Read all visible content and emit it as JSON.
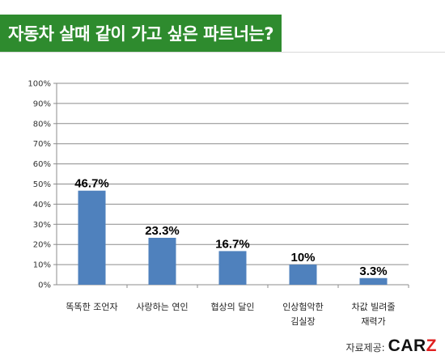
{
  "header": {
    "title": "자동차 살때 같이 가고 싶은 파트너는?"
  },
  "source": {
    "label": "자료제공:",
    "brand_main": "CAR",
    "brand_accent": "Z"
  },
  "colors": {
    "title_bg": "#2e8b2e",
    "bar": "#4f81bd",
    "brand_accent": "#e02020"
  },
  "chart_data": {
    "type": "bar",
    "categories": [
      [
        "똑똑한 조언자"
      ],
      [
        "사랑하는 연인"
      ],
      [
        "협상의 달인"
      ],
      [
        "인상험악한",
        "김실장"
      ],
      [
        "차값 빌려줄",
        "재력가"
      ]
    ],
    "values": [
      46.7,
      23.3,
      16.7,
      10,
      3.3
    ],
    "value_labels": [
      "46.7%",
      "23.3%",
      "16.7%",
      "10%",
      "3.3%"
    ],
    "ylim": [
      0,
      100
    ],
    "yticks": [
      "0%",
      "10%",
      "20%",
      "30%",
      "40%",
      "50%",
      "60%",
      "70%",
      "80%",
      "90%",
      "100%"
    ],
    "grid": true,
    "legend": "none"
  }
}
